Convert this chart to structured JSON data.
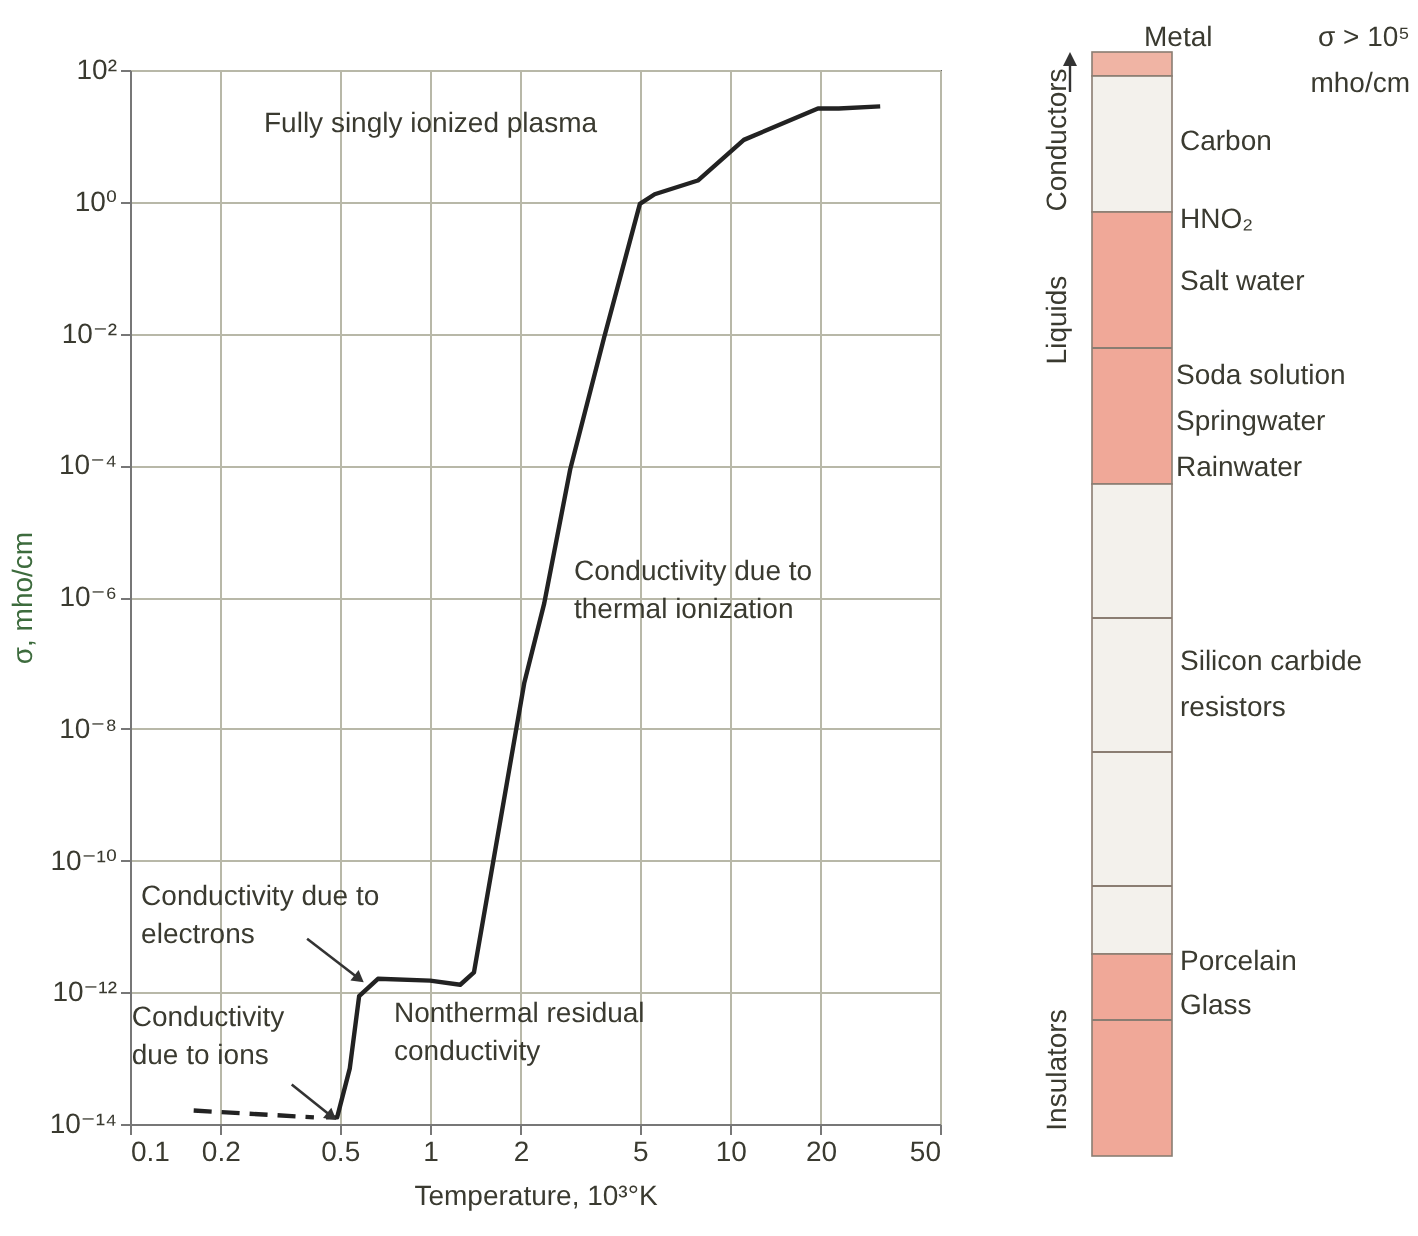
{
  "chart_data": [
    {
      "type": "line",
      "xlabel": "Temperature, 10³°K",
      "ylabel": "σ, mho/cm",
      "log": "xy",
      "xlim": [
        0.1,
        50
      ],
      "xticks": [
        0.1,
        0.2,
        0.5,
        1,
        2,
        5,
        10,
        20,
        50
      ],
      "ylim": [
        1e-14,
        100
      ],
      "yticks": [
        {
          "value": 1e-14,
          "label": "10⁻¹⁴"
        },
        {
          "value": 1e-12,
          "label": "10⁻¹²"
        },
        {
          "value": 1e-10,
          "label": "10⁻¹⁰"
        },
        {
          "value": 1e-08,
          "label": "10⁻⁸"
        },
        {
          "value": 1e-06,
          "label": "10⁻⁶"
        },
        {
          "value": 0.0001,
          "label": "10⁻⁴"
        },
        {
          "value": 0.01,
          "label": "10⁻²"
        },
        {
          "value": 1,
          "label": "10⁰"
        },
        {
          "value": 100,
          "label": "10²"
        }
      ],
      "grid": true,
      "series": [
        {
          "color": "#222222",
          "line_style": "dashed",
          "x": [
            0.163,
            0.41
          ],
          "values": [
            1.6e-14,
            1.26e-14
          ]
        },
        {
          "color": "#222222",
          "line_style": "solid",
          "x": [
            0.45,
            0.49,
            0.54,
            0.58,
            0.67,
            1.0,
            1.26,
            1.4,
            2.06,
            2.4,
            2.93,
            3.8,
            5.0,
            5.6,
            7.8,
            11.1,
            19.6,
            23,
            31.6
          ],
          "values": [
            1.26e-14,
            1.26e-14,
            7e-14,
            8.7e-13,
            1.6e-12,
            1.5e-12,
            1.3e-12,
            2e-12,
            5e-08,
            8e-07,
            8.7e-05,
            0.0087,
            0.93,
            1.3,
            2.1,
            8.7,
            26,
            26,
            28
          ]
        }
      ],
      "annotations": [
        "Fully singly ionized plasma",
        "Conductivity due to\nthermal ionization",
        "Nonthermal residual\nconductivity",
        {
          "text": "Conductivity due to\nelectrons",
          "x": 0.58,
          "y": 1.6e-12
        },
        {
          "text": "Conductivity\ndue to ions",
          "x": 0.47,
          "y": 1.3e-14
        }
      ]
    },
    {
      "type": "other",
      "annotations": [
        "Metal",
        "σ > 10⁵\nmho/cm",
        "Carbon",
        "HNO₂",
        "Salt water",
        "Soda solution",
        "Springwater",
        "Rainwater",
        "Silicon carbide\nresistors",
        "Porcelain",
        "Glass",
        "Conductors",
        "Liquids",
        "Insulators"
      ]
    }
  ]
}
